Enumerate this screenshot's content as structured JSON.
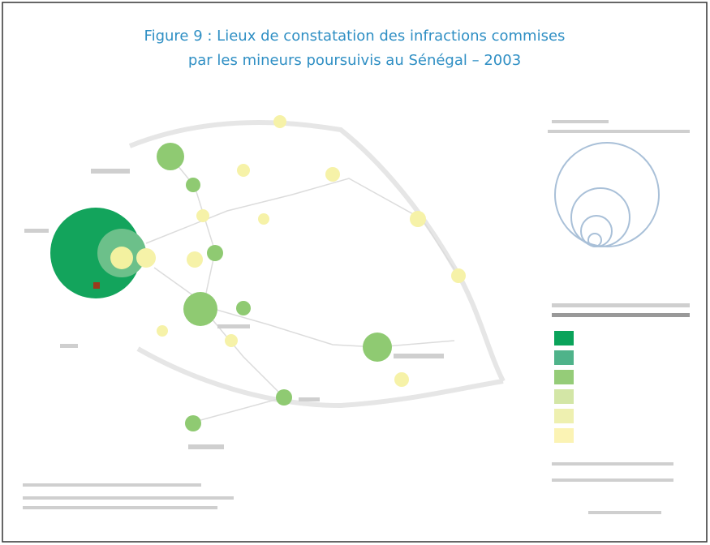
{
  "figure": {
    "title_lines": [
      "Figure 9 : Lieux de constatation des infractions commises",
      "par les mineurs poursuivis au Sénégal – 2003"
    ]
  }
}
